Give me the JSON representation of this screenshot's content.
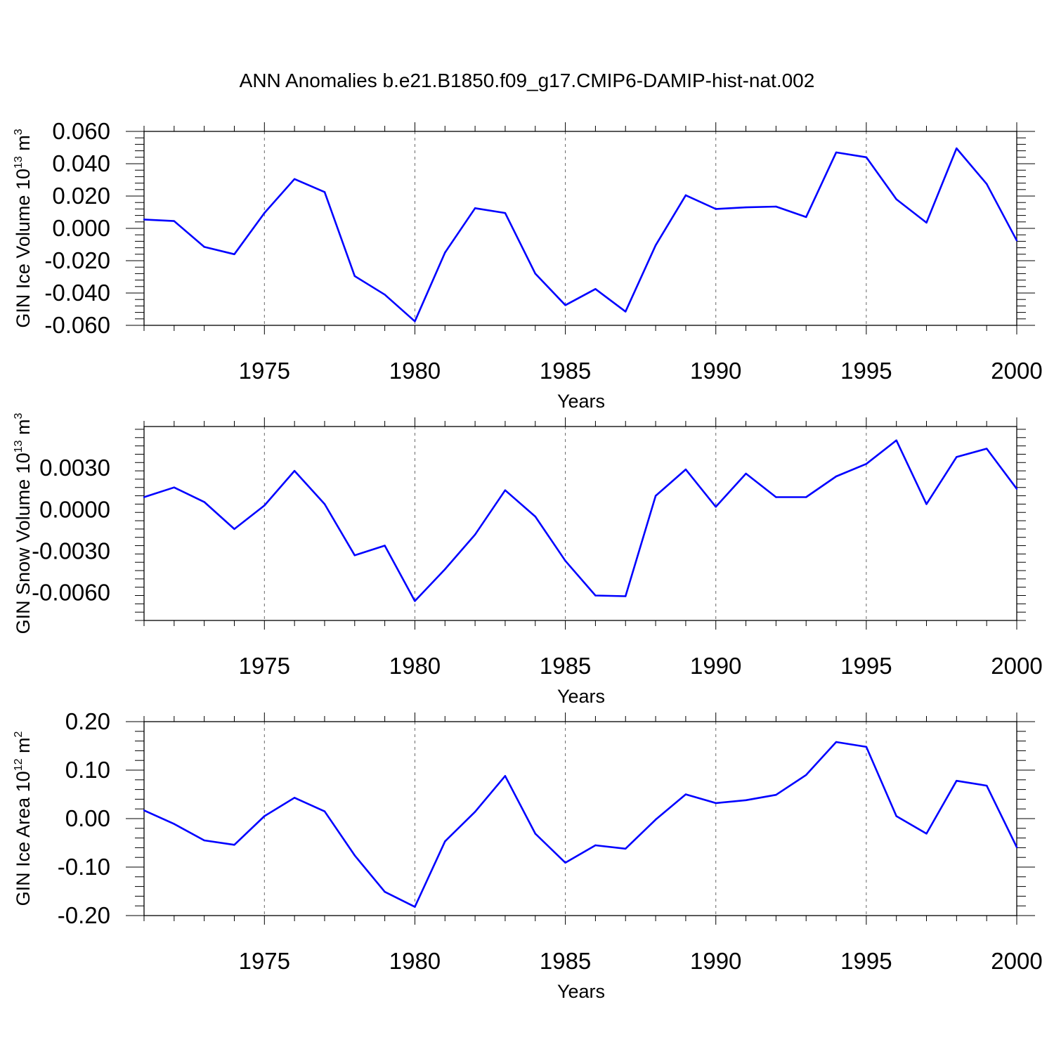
{
  "title": "ANN Anomalies b.e21.B1850.f09_g17.CMIP6-DAMIP-hist-nat.002",
  "colors": {
    "line": "#0000ff",
    "axis": "#000000",
    "grid": "#666666"
  },
  "chart_data": [
    {
      "type": "line",
      "ylabel": {
        "text": "GIN Ice Volume 10",
        "sup": "13",
        "unit": " m",
        "unit_sup": "3"
      },
      "xlabel": "Years",
      "xlim": [
        1971,
        2000
      ],
      "ylim": [
        -0.06,
        0.06
      ],
      "x_ticks": [
        1975,
        1980,
        1985,
        1990,
        1995,
        2000
      ],
      "x_tick_labels": [
        "1975",
        "1980",
        "1985",
        "1990",
        "1995",
        "2000"
      ],
      "y_ticks": [
        -0.06,
        -0.04,
        -0.02,
        0.0,
        0.02,
        0.04,
        0.06
      ],
      "y_tick_labels": [
        "-0.060",
        "-0.040",
        "-0.020",
        "0.000",
        "0.020",
        "0.040",
        "0.060"
      ],
      "grid_x": [
        1975,
        1980,
        1985,
        1990,
        1995
      ],
      "x": [
        1971,
        1972,
        1973,
        1974,
        1975,
        1976,
        1977,
        1978,
        1979,
        1980,
        1981,
        1982,
        1983,
        1984,
        1985,
        1986,
        1987,
        1988,
        1989,
        1990,
        1991,
        1992,
        1993,
        1994,
        1995,
        1996,
        1997,
        1998,
        1999,
        2000
      ],
      "y": [
        0.0055,
        0.0045,
        -0.0115,
        -0.016,
        0.0095,
        0.0305,
        0.0225,
        -0.0295,
        -0.041,
        -0.0575,
        -0.015,
        0.0125,
        0.0095,
        -0.028,
        -0.0475,
        -0.0375,
        -0.0515,
        -0.0105,
        0.0205,
        0.012,
        0.013,
        0.0135,
        0.007,
        0.047,
        0.044,
        0.018,
        0.0035,
        0.0495,
        0.0275,
        -0.0075
      ]
    },
    {
      "type": "line",
      "ylabel": {
        "text": "GIN Snow Volume 10",
        "sup": "13",
        "unit": " m",
        "unit_sup": "3"
      },
      "xlabel": "Years",
      "xlim": [
        1971,
        2000
      ],
      "ylim": [
        -0.008,
        0.006
      ],
      "x_ticks": [
        1975,
        1980,
        1985,
        1990,
        1995,
        2000
      ],
      "x_tick_labels": [
        "1975",
        "1980",
        "1985",
        "1990",
        "1995",
        "2000"
      ],
      "y_ticks": [
        -0.006,
        -0.003,
        0.0,
        0.003
      ],
      "y_tick_labels": [
        "-0.0060",
        "-0.0030",
        "0.0000",
        "0.0030"
      ],
      "grid_x": [
        1975,
        1980,
        1985,
        1990,
        1995
      ],
      "x": [
        1971,
        1972,
        1973,
        1974,
        1975,
        1976,
        1977,
        1978,
        1979,
        1980,
        1981,
        1982,
        1983,
        1984,
        1985,
        1986,
        1987,
        1988,
        1989,
        1990,
        1991,
        1992,
        1993,
        1994,
        1995,
        1996,
        1997,
        1998,
        1999,
        2000
      ],
      "y": [
        0.0009,
        0.0016,
        0.00055,
        -0.0014,
        0.0003,
        0.0028,
        0.0004,
        -0.0033,
        -0.0026,
        -0.0066,
        -0.0043,
        -0.0018,
        0.0014,
        -0.0005,
        -0.0037,
        -0.0062,
        -0.00625,
        0.001,
        0.0029,
        0.0002,
        0.0026,
        0.0009,
        0.0009,
        0.0024,
        0.0033,
        0.005,
        0.0004,
        0.0038,
        0.0044,
        0.0015
      ]
    },
    {
      "type": "line",
      "ylabel": {
        "text": "GIN Ice Area 10",
        "sup": "12",
        "unit": " m",
        "unit_sup": "2"
      },
      "xlabel": "Years",
      "xlim": [
        1971,
        2000
      ],
      "ylim": [
        -0.2,
        0.2
      ],
      "x_ticks": [
        1975,
        1980,
        1985,
        1990,
        1995,
        2000
      ],
      "x_tick_labels": [
        "1975",
        "1980",
        "1985",
        "1990",
        "1995",
        "2000"
      ],
      "y_ticks": [
        -0.2,
        -0.1,
        0.0,
        0.1,
        0.2
      ],
      "y_tick_labels": [
        "-0.20",
        "-0.10",
        "0.00",
        "0.10",
        "0.20"
      ],
      "grid_x": [
        1975,
        1980,
        1985,
        1990,
        1995
      ],
      "x": [
        1971,
        1972,
        1973,
        1974,
        1975,
        1976,
        1977,
        1978,
        1979,
        1980,
        1981,
        1982,
        1983,
        1984,
        1985,
        1986,
        1987,
        1988,
        1989,
        1990,
        1991,
        1992,
        1993,
        1994,
        1995,
        1996,
        1997,
        1998,
        1999,
        2000
      ],
      "y": [
        0.017,
        -0.011,
        -0.045,
        -0.054,
        0.005,
        0.043,
        0.015,
        -0.076,
        -0.151,
        -0.182,
        -0.047,
        0.014,
        0.088,
        -0.031,
        -0.091,
        -0.055,
        -0.062,
        -0.002,
        0.05,
        0.032,
        0.038,
        0.049,
        0.09,
        0.158,
        0.148,
        0.005,
        -0.031,
        0.078,
        0.068,
        -0.059
      ]
    }
  ]
}
